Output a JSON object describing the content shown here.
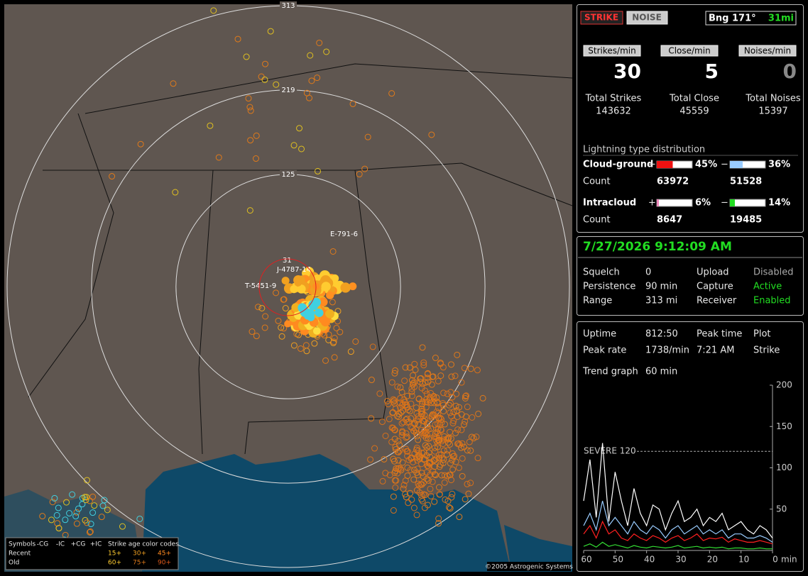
{
  "map": {
    "range_labels": [
      313,
      219,
      125
    ],
    "site_labels": [
      "E-791-6",
      "J-4787-14",
      "T-5451-9",
      "31"
    ],
    "copyright": "©2005 Astrogenic Systems",
    "legend": {
      "symbols_label": "Symbols",
      "types": [
        "-CG",
        "-IC",
        "+CG",
        "+IC"
      ],
      "age_label": "Strike age color codes",
      "rows": [
        "Recent",
        "Old"
      ],
      "ages": [
        "15+",
        "30+",
        "45+",
        "60+",
        "75+",
        "90+"
      ]
    }
  },
  "panel": {
    "modes": [
      "STRIKE",
      "NOISE"
    ],
    "bearing": "Bng 171°",
    "distance": "31mi",
    "rates": [
      {
        "label": "Strikes/min",
        "value": 30
      },
      {
        "label": "Close/min",
        "value": 5
      },
      {
        "label": "Noises/min",
        "value": 0
      }
    ],
    "totals": [
      {
        "label": "Total Strikes",
        "value": 143632
      },
      {
        "label": "Total Close",
        "value": 45559
      },
      {
        "label": "Total Noises",
        "value": 15397
      }
    ],
    "distribution": {
      "title": "Lightning type distribution",
      "plus_sign": "+",
      "minus_sign": "−",
      "count_label": "Count",
      "rows": [
        {
          "name": "Cloud-ground",
          "plus": 45,
          "plus_label": "45%",
          "minus": 36,
          "minus_label": "36%",
          "plus_count": 63972,
          "minus_count": 51528
        },
        {
          "name": "Intracloud",
          "plus": 6,
          "plus_label": "6%",
          "minus": 14,
          "minus_label": "14%",
          "plus_count": 8647,
          "minus_count": 19485
        }
      ]
    },
    "datetime": "7/27/2026 9:12:09 AM",
    "settings": [
      {
        "label": "Squelch",
        "value": "0"
      },
      {
        "label": "Persistence",
        "value": "90 min"
      },
      {
        "label": "Range",
        "value": "313 mi"
      }
    ],
    "status": [
      {
        "label": "Upload",
        "value": "Disabled"
      },
      {
        "label": "Capture",
        "value": "Active"
      },
      {
        "label": "Receiver",
        "value": "Enabled"
      }
    ],
    "stats": [
      {
        "label": "Uptime",
        "value": "812:50"
      },
      {
        "label": "Peak rate",
        "value": "1738/min"
      }
    ],
    "peak": [
      {
        "label": "Peak time",
        "value": "7:21 AM"
      }
    ],
    "plot": {
      "label": "Plot",
      "value": "Strike"
    }
  },
  "trend": {
    "label": "Trend graph",
    "period": "60 min",
    "x": [
      60,
      58,
      56,
      54,
      52,
      50,
      48,
      46,
      44,
      42,
      40,
      38,
      36,
      34,
      32,
      30,
      28,
      26,
      24,
      22,
      20,
      18,
      16,
      14,
      12,
      10,
      8,
      6,
      4,
      2,
      0
    ],
    "xlim": [
      60,
      0
    ],
    "xticks": [
      60,
      50,
      40,
      30,
      20,
      10,
      0
    ],
    "x_unit": "min",
    "ylim": [
      0,
      200
    ],
    "yticks": [
      50,
      100,
      150,
      200
    ],
    "threshold": {
      "value": 120,
      "label": "SEVERE 120"
    },
    "series": [
      {
        "color": "#ffffff",
        "values": [
          60,
          110,
          40,
          130,
          35,
          95,
          60,
          30,
          75,
          45,
          30,
          55,
          50,
          25,
          45,
          60,
          35,
          40,
          50,
          30,
          40,
          35,
          45,
          25,
          30,
          35,
          25,
          20,
          30,
          25,
          15
        ]
      },
      {
        "color": "#99ccff",
        "values": [
          30,
          45,
          25,
          60,
          30,
          40,
          30,
          20,
          35,
          25,
          20,
          30,
          25,
          15,
          25,
          30,
          20,
          25,
          30,
          20,
          25,
          20,
          25,
          15,
          20,
          20,
          15,
          15,
          18,
          15,
          10
        ]
      },
      {
        "color": "#ff2020",
        "values": [
          20,
          30,
          15,
          35,
          20,
          25,
          15,
          12,
          20,
          15,
          12,
          18,
          15,
          10,
          15,
          18,
          12,
          15,
          20,
          12,
          15,
          14,
          16,
          10,
          14,
          12,
          10,
          10,
          12,
          10,
          8
        ]
      },
      {
        "color": "#33dd33",
        "values": [
          5,
          8,
          4,
          10,
          5,
          7,
          5,
          3,
          6,
          4,
          3,
          5,
          4,
          3,
          4,
          6,
          3,
          4,
          5,
          3,
          4,
          3,
          4,
          2,
          3,
          3,
          2,
          2,
          3,
          2,
          2
        ]
      }
    ]
  }
}
